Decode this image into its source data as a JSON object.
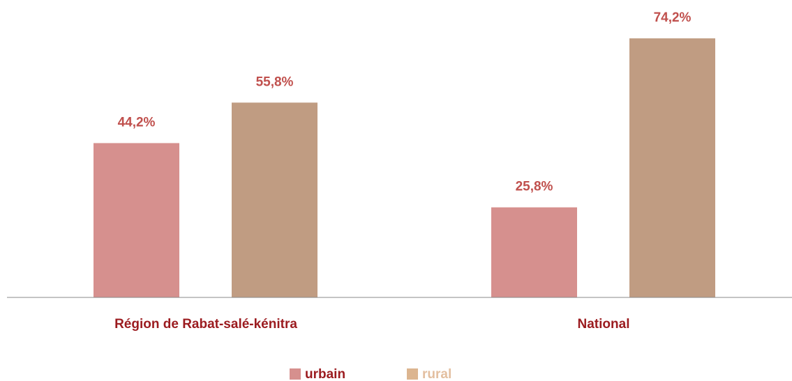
{
  "chart_data": {
    "type": "bar",
    "categories": [
      "Région de Rabat-salé-kénitra",
      "National"
    ],
    "series": [
      {
        "name": "urbain",
        "color": "#d6908e",
        "values": [
          44.2,
          25.8
        ],
        "value_labels": [
          "44,2%",
          "25,8%"
        ]
      },
      {
        "name": "rural",
        "color": "#c09c82",
        "values": [
          55.8,
          74.2
        ],
        "value_labels": [
          "55,8%",
          "74,2%"
        ]
      }
    ],
    "ylim": [
      0,
      80
    ]
  }
}
